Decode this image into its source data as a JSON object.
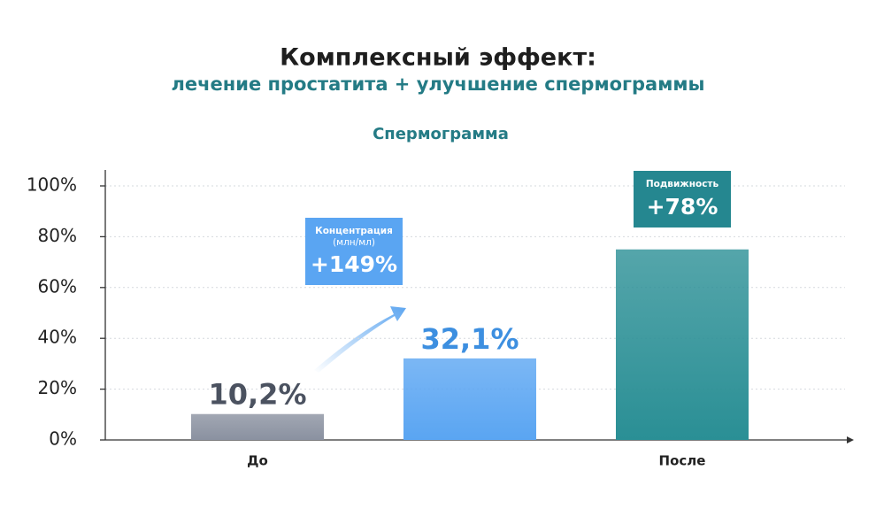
{
  "chart_data": {
    "type": "bar",
    "title": "Комплексный эффект:",
    "subtitle": "лечение простатита + улучшение спермограммы",
    "chart_title": "Спермограмма",
    "categories": [
      "До",
      null,
      "После"
    ],
    "values": [
      10.2,
      32.1,
      75
    ],
    "value_labels": [
      "10,2%",
      "32,1%",
      null
    ],
    "colors": [
      "#8a91a0",
      "#5aa5f2",
      "#2a8f95"
    ],
    "ylim": [
      0,
      100
    ],
    "yticks": [
      {
        "value": 0,
        "label": "0%"
      },
      {
        "value": 20,
        "label": "20%"
      },
      {
        "value": 40,
        "label": "40%"
      },
      {
        "value": 60,
        "label": "60%"
      },
      {
        "value": 80,
        "label": "80%"
      },
      {
        "value": 100,
        "label": "100%"
      }
    ],
    "grid": true,
    "annotations": [
      {
        "label": "Концентрация",
        "sublabel": "(млн/мл)",
        "text": "+149%"
      },
      {
        "label": "Подвижность",
        "text": "+78%"
      }
    ]
  }
}
